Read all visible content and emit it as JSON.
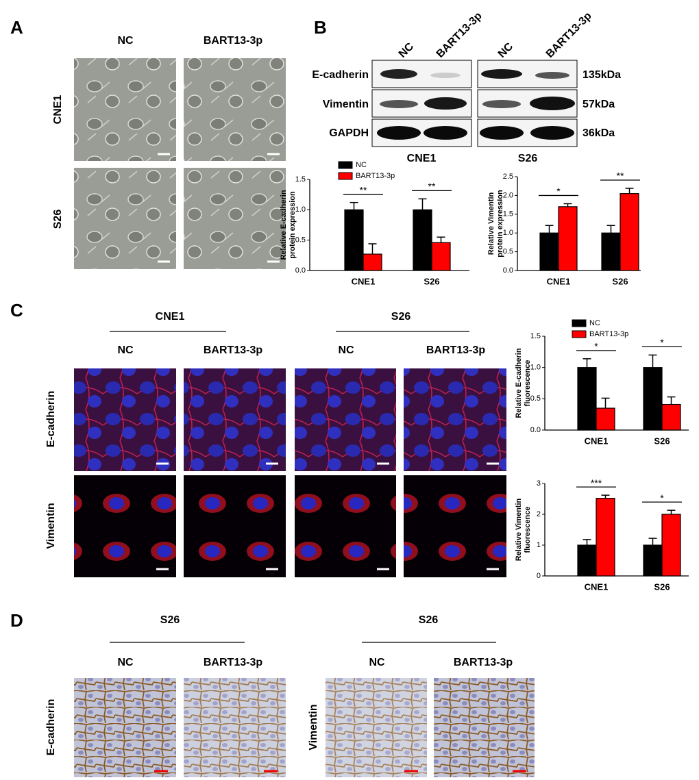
{
  "panels": [
    "A",
    "B",
    "C",
    "D"
  ],
  "panel_a": {
    "columns": [
      "NC",
      "BART13-3p"
    ],
    "rows": [
      "CNE1",
      "S26"
    ]
  },
  "panel_b": {
    "lanes": [
      "NC",
      "BART13-3p",
      "NC",
      "BART13-3p"
    ],
    "proteins": [
      "E-cadherin",
      "Vimentin",
      "GAPDH"
    ],
    "sizes": [
      "135kDa",
      "57kDa",
      "36kDa"
    ],
    "groups": [
      "CNE1",
      "S26"
    ]
  },
  "panel_c": {
    "groups": [
      "CNE1",
      "S26"
    ],
    "columns": [
      "NC",
      "BART13-3p",
      "NC",
      "BART13-3p"
    ],
    "rows": [
      "E-cadherin",
      "Vimentin"
    ]
  },
  "panel_d": {
    "groups": [
      "S26",
      "S26"
    ],
    "columns": [
      "NC",
      "BART13-3p",
      "NC",
      "BART13-3p"
    ],
    "rows": [
      "E-cadherin",
      "Vimentin"
    ]
  },
  "chart_data": [
    {
      "type": "bar",
      "ylabel": [
        "Relative E-cadherin",
        "protein expression"
      ],
      "categories": [
        "CNE1",
        "S26"
      ],
      "series": [
        {
          "name": "NC",
          "color": "#000000",
          "values": [
            1.0,
            1.0
          ],
          "errors": [
            0.12,
            0.18
          ]
        },
        {
          "name": "BART13-3p",
          "color": "#ff0000",
          "values": [
            0.27,
            0.46
          ],
          "errors": [
            0.17,
            0.09
          ]
        }
      ],
      "ylim": [
        0,
        1.5
      ],
      "yticks": [
        {
          "value": 0,
          "label": "0.0"
        },
        {
          "value": 0.5,
          "label": "0.5"
        },
        {
          "value": 1,
          "label": "1.0"
        },
        {
          "value": 1.5,
          "label": "1.5"
        }
      ],
      "annotations": [
        "**",
        "**"
      ],
      "legend": "upper left"
    },
    {
      "type": "bar",
      "ylabel": [
        "Relative Vimentin",
        "protein expression"
      ],
      "categories": [
        "CNE1",
        "S26"
      ],
      "series": [
        {
          "name": "NC",
          "color": "#000000",
          "values": [
            1.0,
            1.0
          ],
          "errors": [
            0.2,
            0.2
          ]
        },
        {
          "name": "BART13-3p",
          "color": "#ff0000",
          "values": [
            1.7,
            2.05
          ],
          "errors": [
            0.08,
            0.14
          ]
        }
      ],
      "ylim": [
        0,
        2.5
      ],
      "yticks": [
        {
          "value": 0,
          "label": "0.0"
        },
        {
          "value": 0.5,
          "label": "0.5"
        },
        {
          "value": 1,
          "label": "1.0"
        },
        {
          "value": 1.5,
          "label": "1.5"
        },
        {
          "value": 2,
          "label": "2.0"
        },
        {
          "value": 2.5,
          "label": "2.5"
        }
      ],
      "annotations": [
        "*",
        "**"
      ]
    },
    {
      "type": "bar",
      "ylabel": [
        "Relative E-cadherin",
        "fluorescence"
      ],
      "categories": [
        "CNE1",
        "S26"
      ],
      "series": [
        {
          "name": "NC",
          "color": "#000000",
          "values": [
            1.0,
            1.0
          ],
          "errors": [
            0.14,
            0.2
          ]
        },
        {
          "name": "BART13-3p",
          "color": "#ff0000",
          "values": [
            0.35,
            0.41
          ],
          "errors": [
            0.16,
            0.12
          ]
        }
      ],
      "ylim": [
        0,
        1.5
      ],
      "yticks": [
        {
          "value": 0,
          "label": "0.0"
        },
        {
          "value": 0.5,
          "label": "0.5"
        },
        {
          "value": 1,
          "label": "1.0"
        },
        {
          "value": 1.5,
          "label": "1.5"
        }
      ],
      "annotations": [
        "*",
        "*"
      ],
      "legend": "upper left"
    },
    {
      "type": "bar",
      "ylabel": [
        "Relative Vimentin",
        "fluorescence"
      ],
      "categories": [
        "CNE1",
        "S26"
      ],
      "series": [
        {
          "name": "NC",
          "color": "#000000",
          "values": [
            1.0,
            1.0
          ],
          "errors": [
            0.18,
            0.22
          ]
        },
        {
          "name": "BART13-3p",
          "color": "#ff0000",
          "values": [
            2.52,
            2.0
          ],
          "errors": [
            0.1,
            0.13
          ]
        }
      ],
      "ylim": [
        0,
        3
      ],
      "yticks": [
        0,
        1,
        2,
        3
      ],
      "annotations": [
        "***",
        "*"
      ]
    }
  ]
}
